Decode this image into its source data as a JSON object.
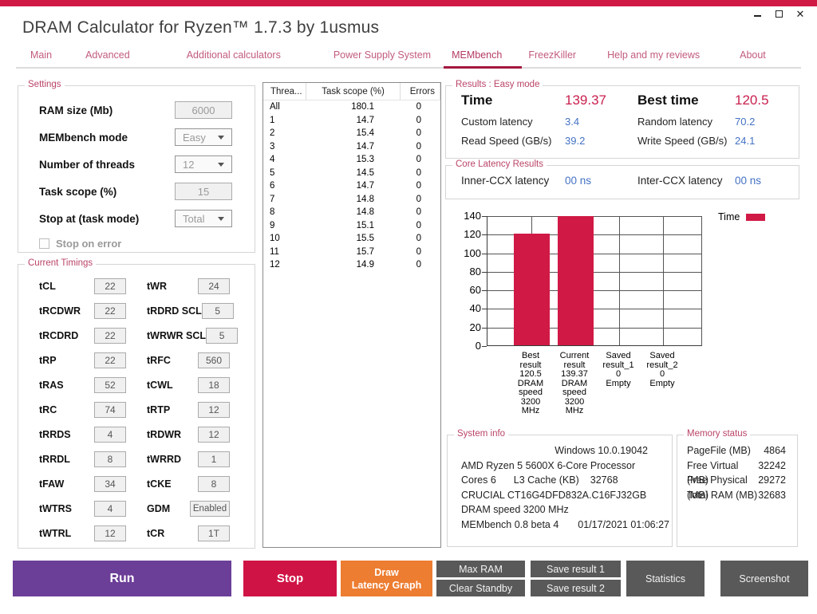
{
  "colors": {
    "accent_crimson": "#D01945",
    "accent_dark": "#A3173E",
    "value_red": "#C81F4E",
    "value_blue": "#4472C4",
    "run_purple": "#6B3E98",
    "draw_orange": "#ED7D31",
    "dark_button": "#595959"
  },
  "titlebar": {
    "title": "DRAM Calculator for Ryzen™ 1.7.3 by 1usmus",
    "close_glyph": "✕"
  },
  "tabs": [
    {
      "label": "Main",
      "active": false
    },
    {
      "label": "Advanced",
      "active": false
    },
    {
      "label": "Additional calculators",
      "active": false
    },
    {
      "label": "Power Supply System",
      "active": false
    },
    {
      "label": "MEMbench",
      "active": true
    },
    {
      "label": "FreezKiller",
      "active": false
    },
    {
      "label": "Help and my reviews",
      "active": false
    },
    {
      "label": "About",
      "active": false
    }
  ],
  "settings": {
    "legend": "Settings",
    "fields": [
      {
        "label": "RAM size (Mb)",
        "value": "6000",
        "type": "input"
      },
      {
        "label": "MEMbench mode",
        "value": "Easy",
        "type": "select"
      },
      {
        "label": "Number of threads",
        "value": "12",
        "type": "select"
      },
      {
        "label": "Task scope (%)",
        "value": "15",
        "type": "input"
      },
      {
        "label": "Stop at (task mode)",
        "value": "Total",
        "type": "select"
      }
    ],
    "checkbox": {
      "label": "Stop on error",
      "checked": false
    }
  },
  "timings": {
    "legend": "Current Timings",
    "left": [
      {
        "label": "tCL",
        "value": "22"
      },
      {
        "label": "tRCDWR",
        "value": "22"
      },
      {
        "label": "tRCDRD",
        "value": "22"
      },
      {
        "label": "tRP",
        "value": "22"
      },
      {
        "label": "tRAS",
        "value": "52"
      },
      {
        "label": "tRC",
        "value": "74"
      },
      {
        "label": "tRRDS",
        "value": "4"
      },
      {
        "label": "tRRDL",
        "value": "8"
      },
      {
        "label": "tFAW",
        "value": "34"
      },
      {
        "label": "tWTRS",
        "value": "4"
      },
      {
        "label": "tWTRL",
        "value": "12"
      }
    ],
    "right": [
      {
        "label": "tWR",
        "value": "24"
      },
      {
        "label": "tRDRD SCL",
        "value": "5"
      },
      {
        "label": "tWRWR SCL",
        "value": "5"
      },
      {
        "label": "tRFC",
        "value": "560"
      },
      {
        "label": "tCWL",
        "value": "18"
      },
      {
        "label": "tRTP",
        "value": "12"
      },
      {
        "label": "tRDWR",
        "value": "12"
      },
      {
        "label": "tWRRD",
        "value": "1"
      },
      {
        "label": "tCKE",
        "value": "8"
      },
      {
        "label": "GDM",
        "value": "Enabled",
        "wide": true
      },
      {
        "label": "tCR",
        "value": "1T"
      }
    ]
  },
  "thread_table": {
    "columns": [
      "Threa...",
      "Task scope (%)",
      "Errors"
    ],
    "rows": [
      [
        "All",
        "180.1",
        "0"
      ],
      [
        "1",
        "14.7",
        "0"
      ],
      [
        "2",
        "15.4",
        "0"
      ],
      [
        "3",
        "14.7",
        "0"
      ],
      [
        "4",
        "15.3",
        "0"
      ],
      [
        "5",
        "14.5",
        "0"
      ],
      [
        "6",
        "14.7",
        "0"
      ],
      [
        "7",
        "14.8",
        "0"
      ],
      [
        "8",
        "14.8",
        "0"
      ],
      [
        "9",
        "15.1",
        "0"
      ],
      [
        "10",
        "15.5",
        "0"
      ],
      [
        "11",
        "15.7",
        "0"
      ],
      [
        "12",
        "14.9",
        "0"
      ]
    ]
  },
  "results": {
    "legend": "Results : Easy mode",
    "time_label": "Time",
    "time_value": "139.37",
    "best_time_label": "Best time",
    "best_time_value": "120.5",
    "custom_latency_label": "Custom latency",
    "custom_latency_value": "3.4",
    "random_latency_label": "Random latency",
    "random_latency_value": "70.2",
    "read_speed_label": "Read Speed (GB/s)",
    "read_speed_value": "39.2",
    "write_speed_label": "Write Speed (GB/s)",
    "write_speed_value": "24.1"
  },
  "core_latency": {
    "legend": "Core Latency Results",
    "inner_label": "Inner-CCX latency",
    "inner_value": "00 ns",
    "inter_label": "Inter-CCX latency",
    "inter_value": "00 ns"
  },
  "chart_data": {
    "type": "bar",
    "title": "",
    "categories": [
      "Best\nresult\n120.5\nDRAM\nspeed\n3200\nMHz",
      "Current\nresult\n139.37\nDRAM\nspeed\n3200\nMHz",
      "Saved\nresult_1\n0\nEmpty",
      "Saved\nresult_2\n0\nEmpty"
    ],
    "series": [
      {
        "name": "Time",
        "color": "#D01945",
        "values": [
          120.5,
          139.37,
          0,
          0
        ]
      }
    ],
    "xlabel": "",
    "ylabel": "",
    "ylim": [
      0,
      140
    ],
    "yticks": [
      0,
      20,
      40,
      60,
      80,
      100,
      120,
      140
    ],
    "grid": true,
    "legend_position": "top-right"
  },
  "system_info": {
    "legend": "System info",
    "os": "Windows 10.0.19042",
    "cpu": "AMD Ryzen 5 5600X 6-Core Processor",
    "cores_label": "Cores 6",
    "l3_label": "L3 Cache (KB)",
    "l3_value": "32768",
    "ram_module": "CRUCIAL CT16G4DFD832A.C16FJ32GB",
    "dram_speed": "DRAM speed 3200 MHz",
    "membench_version": "MEMbench 0.8 beta 4",
    "datetime": "01/17/2021 01:06:27"
  },
  "memory_status": {
    "legend": "Memory status",
    "rows": [
      [
        "PageFile (MB)",
        "4864"
      ],
      [
        "Free Virtual (MB)",
        "32242"
      ],
      [
        "Free Physical (MB)",
        "29272"
      ],
      [
        "Total RAM (MB)",
        "32683"
      ]
    ]
  },
  "buttons": {
    "run": "Run",
    "stop": "Stop",
    "draw": "Draw\nLatency Graph",
    "max_ram": "Max RAM",
    "clear_standby": "Clear Standby",
    "save1": "Save result 1",
    "save2": "Save result 2",
    "statistics": "Statistics",
    "screenshot": "Screenshot"
  }
}
